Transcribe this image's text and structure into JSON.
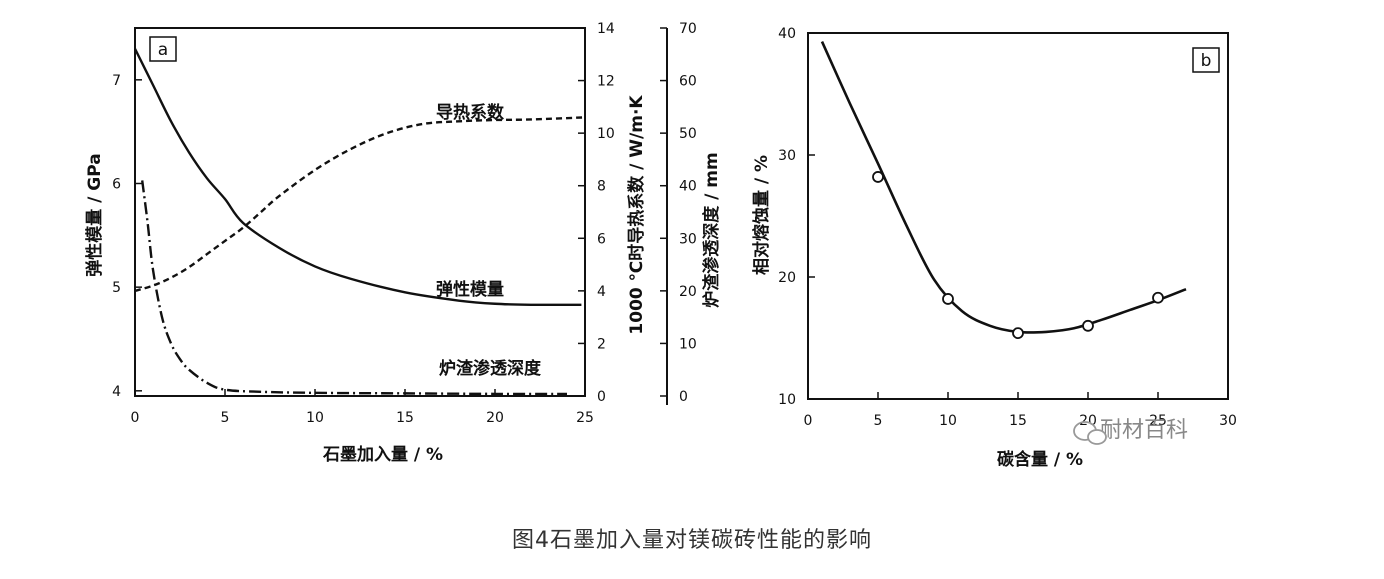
{
  "caption": "图4石墨加入量对镁碳砖性能的影响",
  "watermark": "耐材百科",
  "chart_data": [
    {
      "id": "a",
      "type": "line",
      "panel_label": "a",
      "xlabel": "石墨加入量 / %",
      "xlim": [
        0,
        25
      ],
      "xticks": [
        0,
        5,
        10,
        15,
        20,
        25
      ],
      "axes": [
        {
          "key": "left",
          "label": "弹性模量 / GPa",
          "lim": [
            3.95,
            7.5
          ],
          "ticks": [
            4,
            5,
            6,
            7
          ]
        },
        {
          "key": "right1",
          "label": "1000 ℃时导热系数 / W/m·K",
          "lim": [
            0,
            14
          ],
          "ticks": [
            0,
            2,
            4,
            6,
            8,
            10,
            12,
            14
          ]
        },
        {
          "key": "right2",
          "label": "炉渣渗透深度 / mm",
          "lim": [
            0,
            70
          ],
          "ticks": [
            0,
            10,
            20,
            30,
            40,
            50,
            60,
            70
          ]
        }
      ],
      "series": [
        {
          "name": "弹性模量",
          "axis": "left",
          "style": "solid",
          "x": [
            0,
            1,
            2,
            3,
            4,
            5,
            6,
            8,
            10,
            12,
            15,
            18,
            20,
            22,
            24,
            24.8
          ],
          "y": [
            7.3,
            6.95,
            6.6,
            6.3,
            6.05,
            5.85,
            5.62,
            5.38,
            5.2,
            5.08,
            4.95,
            4.87,
            4.84,
            4.83,
            4.83,
            4.83
          ]
        },
        {
          "name": "导热系数",
          "axis": "right1",
          "style": "dashed",
          "x": [
            0,
            1,
            2,
            3,
            4,
            5,
            6,
            7,
            8,
            10,
            12,
            14,
            16,
            18,
            20,
            22,
            25
          ],
          "y": [
            4,
            4.2,
            4.5,
            4.9,
            5.4,
            5.9,
            6.4,
            7.0,
            7.6,
            8.6,
            9.4,
            10,
            10.35,
            10.45,
            10.5,
            10.52,
            10.6
          ]
        },
        {
          "name": "炉渣渗透深度",
          "axis": "right2",
          "style": "dashdot",
          "x": [
            0.4,
            0.7,
            1,
            1.5,
            2,
            2.5,
            3,
            4,
            5,
            7,
            10,
            15,
            20,
            24
          ],
          "y": [
            41,
            33,
            24,
            15,
            10,
            7,
            5,
            2.5,
            1.2,
            0.8,
            0.6,
            0.5,
            0.4,
            0.4
          ]
        }
      ],
      "annotations": [
        "导热系数",
        "弹性模量",
        "炉渣渗透深度"
      ]
    },
    {
      "id": "b",
      "type": "line",
      "panel_label": "b",
      "xlabel": "碳含量 / %",
      "ylabel": "相对熔蚀量 / %",
      "xlim": [
        0,
        30
      ],
      "ylim": [
        10,
        40
      ],
      "xticks": [
        0,
        5,
        10,
        15,
        20,
        25,
        30
      ],
      "yticks": [
        10,
        20,
        30,
        40
      ],
      "series": [
        {
          "name": "fit",
          "style": "solid",
          "x": [
            1,
            3,
            5,
            7,
            9,
            11,
            13,
            15,
            17,
            19,
            21,
            23,
            25,
            27
          ],
          "y": [
            39.3,
            34.2,
            29.3,
            24.3,
            19.8,
            17.2,
            16.0,
            15.5,
            15.5,
            15.8,
            16.5,
            17.3,
            18.1,
            19.0
          ]
        },
        {
          "name": "measured",
          "style": "marker",
          "x": [
            5,
            10,
            15,
            20,
            25
          ],
          "y": [
            28.2,
            18.2,
            15.4,
            16.0,
            18.3
          ]
        }
      ]
    }
  ]
}
